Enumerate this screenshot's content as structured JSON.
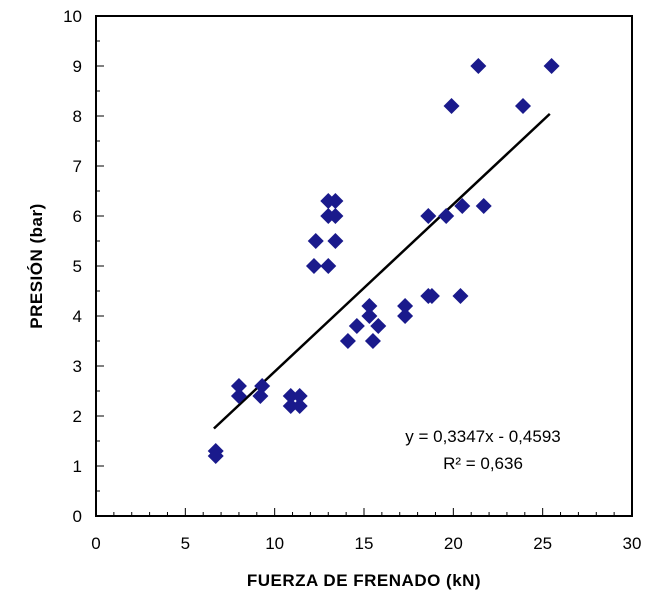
{
  "chart_data": {
    "type": "scatter",
    "xlabel": "FUERZA DE FRENADO (kN)",
    "ylabel": "PRESIÓN  (bar)",
    "xlim": [
      0,
      30
    ],
    "ylim": [
      0,
      10
    ],
    "xticks": [
      0,
      5,
      10,
      15,
      20,
      25,
      30
    ],
    "yticks": [
      0,
      1,
      2,
      3,
      4,
      5,
      6,
      7,
      8,
      9,
      10
    ],
    "grid": false,
    "marker_color": "#1a1a8c",
    "line_color": "#000000",
    "series": [
      {
        "points": [
          [
            6.7,
            1.2
          ],
          [
            6.7,
            1.3
          ],
          [
            8.0,
            2.4
          ],
          [
            8.0,
            2.6
          ],
          [
            9.2,
            2.4
          ],
          [
            9.3,
            2.6
          ],
          [
            10.9,
            2.2
          ],
          [
            10.9,
            2.4
          ],
          [
            11.4,
            2.2
          ],
          [
            11.4,
            2.4
          ],
          [
            12.2,
            5.0
          ],
          [
            12.3,
            5.5
          ],
          [
            13.0,
            5.0
          ],
          [
            13.0,
            6.0
          ],
          [
            13.0,
            6.3
          ],
          [
            13.4,
            5.5
          ],
          [
            13.4,
            6.0
          ],
          [
            13.4,
            6.3
          ],
          [
            14.1,
            3.5
          ],
          [
            14.6,
            3.8
          ],
          [
            15.3,
            4.0
          ],
          [
            15.3,
            4.2
          ],
          [
            15.5,
            3.5
          ],
          [
            15.8,
            3.8
          ],
          [
            17.3,
            4.0
          ],
          [
            17.3,
            4.2
          ],
          [
            18.6,
            4.4
          ],
          [
            18.6,
            6.0
          ],
          [
            18.8,
            4.4
          ],
          [
            19.6,
            6.0
          ],
          [
            19.9,
            8.2
          ],
          [
            20.4,
            4.4
          ],
          [
            20.5,
            6.2
          ],
          [
            21.4,
            9.0
          ],
          [
            21.7,
            6.2
          ],
          [
            23.9,
            8.2
          ],
          [
            25.5,
            9.0
          ]
        ]
      }
    ],
    "trendline": {
      "type": "linear",
      "slope": 0.3347,
      "intercept": -0.4593,
      "x_range": [
        6.6,
        25.4
      ],
      "equation_text": "y = 0,3347x - 0,4593",
      "r2_text": "R² = 0,636"
    }
  }
}
